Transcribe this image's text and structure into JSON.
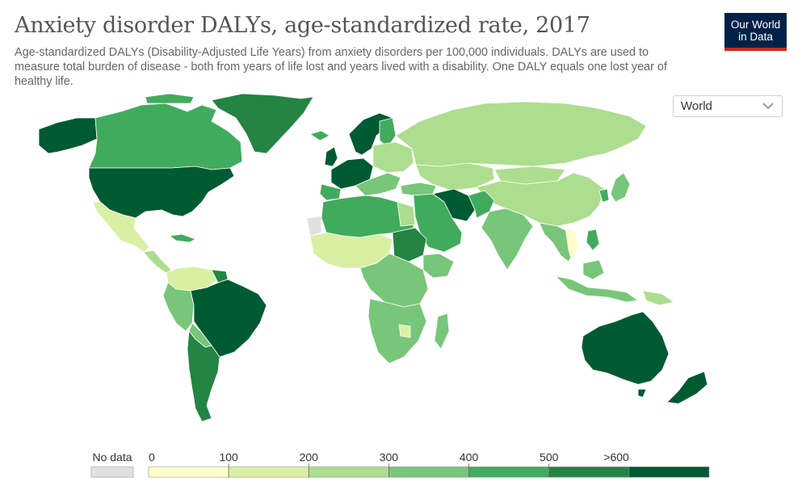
{
  "title": "Anxiety disorder DALYs, age-standardized rate, 2017",
  "subtitle": "Age-standardized DALYs (Disability-Adjusted Life Years) from anxiety disorders per 100,000 individuals. DALYs are used to measure total burden of disease - both from years of life lost and years lived with a disability. One DALY equals one lost year of healthy life.",
  "logo": {
    "line1": "Our World",
    "line2": "in Data"
  },
  "region_selector": {
    "value": "World"
  },
  "legend": {
    "no_data_label": "No data",
    "tick_labels": [
      "0",
      "100",
      "200",
      "300",
      "400",
      "500",
      ">600"
    ],
    "colors": [
      "#ffffcc",
      "#d9f0a3",
      "#addd8e",
      "#78c679",
      "#41ab5d",
      "#238443",
      "#005a32"
    ],
    "no_data_color": "#e0e0e0"
  },
  "colors": {
    "ocean": "#ffffff",
    "border": "#ffffff",
    "title": "#555555",
    "logo_bg": "#002147",
    "logo_bar": "#ce261e"
  }
}
